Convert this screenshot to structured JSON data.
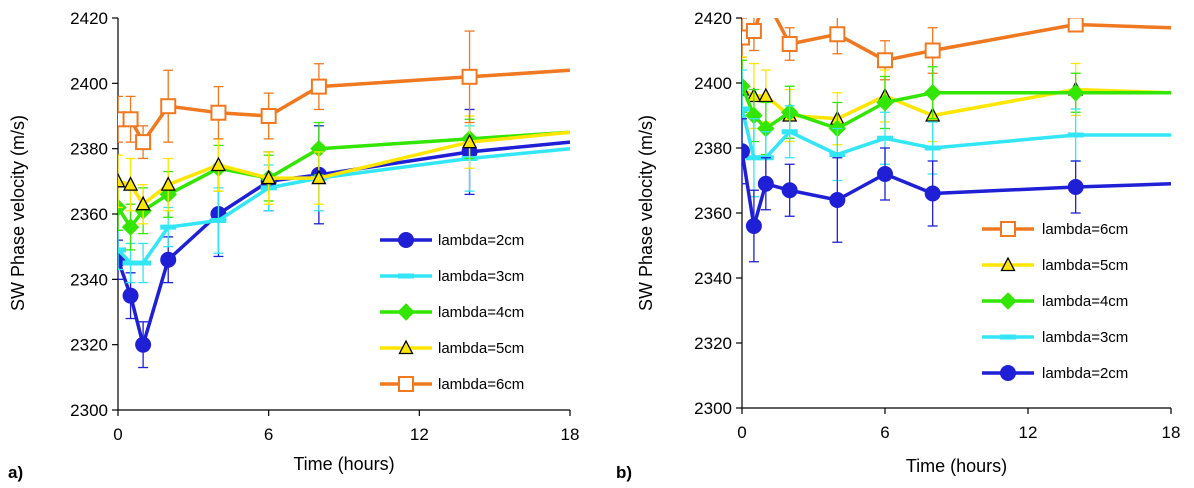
{
  "chart_data": [
    {
      "panel_label": "a)",
      "type": "line",
      "xlabel": "Time (hours)",
      "ylabel": "SW Phase velocity (m/s)",
      "xlim": [
        0,
        18
      ],
      "ylim": [
        2300,
        2420
      ],
      "x_ticks": [
        0,
        6,
        12,
        18
      ],
      "y_ticks": [
        2300,
        2320,
        2340,
        2360,
        2380,
        2400,
        2420
      ],
      "grid": false,
      "legend_position": "lower-right",
      "series": [
        {
          "name": "lambda=2cm",
          "color": "#1f1fd6",
          "marker": "filled-circle",
          "x": [
            0,
            0.5,
            1,
            2,
            4,
            6,
            8,
            14,
            18
          ],
          "y": [
            2346,
            2335,
            2320,
            2346,
            2360,
            2370,
            2372,
            2379,
            2382
          ],
          "err": [
            6,
            7,
            7,
            7,
            13,
            9,
            15,
            13,
            0
          ]
        },
        {
          "name": "lambda=3cm",
          "color": "#33e6f5",
          "marker": "dash",
          "x": [
            0,
            0.5,
            1,
            2,
            4,
            6,
            8,
            14,
            18
          ],
          "y": [
            2349,
            2345,
            2345,
            2356,
            2358,
            2368,
            2371,
            2377,
            2380
          ],
          "err": [
            6,
            6,
            6,
            6,
            10,
            7,
            10,
            10,
            0
          ]
        },
        {
          "name": "lambda=4cm",
          "color": "#33e600",
          "marker": "filled-diamond",
          "x": [
            0,
            0.5,
            1,
            2,
            4,
            6,
            8,
            14,
            18
          ],
          "y": [
            2362,
            2356,
            2361,
            2366,
            2374,
            2371,
            2380,
            2383,
            2385
          ],
          "err": [
            7,
            7,
            7,
            7,
            7,
            7,
            8,
            6,
            0
          ]
        },
        {
          "name": "lambda=5cm",
          "color": "#ffe600",
          "marker": "open-triangle",
          "x": [
            0,
            0.5,
            1,
            2,
            4,
            6,
            8,
            14,
            18
          ],
          "y": [
            2370,
            2369,
            2363,
            2369,
            2375,
            2371,
            2371,
            2382,
            2385
          ],
          "err": [
            8,
            8,
            6,
            8,
            8,
            8,
            8,
            8,
            0
          ]
        },
        {
          "name": "lambda=6cm",
          "color": "#f07820",
          "marker": "open-square",
          "x": [
            0,
            0.5,
            1,
            2,
            4,
            6,
            8,
            14,
            18
          ],
          "y": [
            2389,
            2389,
            2382,
            2393,
            2391,
            2390,
            2399,
            2402,
            2404
          ],
          "err": [
            7,
            7,
            5,
            11,
            8,
            7,
            7,
            14,
            0
          ]
        }
      ]
    },
    {
      "panel_label": "b)",
      "type": "line",
      "xlabel": "Time (hours)",
      "ylabel": "SW Phase velocity (m/s)",
      "xlim": [
        0,
        18
      ],
      "ylim": [
        2300,
        2420
      ],
      "x_ticks": [
        0,
        6,
        12,
        18
      ],
      "y_ticks": [
        2300,
        2320,
        2340,
        2360,
        2380,
        2400,
        2420
      ],
      "grid": false,
      "legend_position": "lower-right",
      "series": [
        {
          "name": "lambda=6cm",
          "color": "#f07820",
          "marker": "open-square",
          "x": [
            0,
            0.5,
            1,
            2,
            4,
            6,
            8,
            14,
            18
          ],
          "y": [
            2414,
            2416,
            2426,
            2412,
            2415,
            2407,
            2410,
            2418,
            2417
          ],
          "err": [
            6,
            6,
            0,
            5,
            6,
            6,
            7,
            0,
            0
          ]
        },
        {
          "name": "lambda=5cm",
          "color": "#ffe600",
          "marker": "open-triangle",
          "x": [
            0,
            0.5,
            1,
            2,
            4,
            6,
            8,
            14,
            18
          ],
          "y": [
            2398,
            2396,
            2396,
            2390,
            2389,
            2396,
            2390,
            2398,
            2397
          ],
          "err": [
            10,
            10,
            8,
            8,
            8,
            8,
            8,
            8,
            0
          ]
        },
        {
          "name": "lambda=4cm",
          "color": "#33e600",
          "marker": "filled-diamond",
          "x": [
            0,
            0.5,
            1,
            2,
            4,
            6,
            8,
            14,
            18
          ],
          "y": [
            2399,
            2390,
            2386,
            2391,
            2386,
            2394,
            2397,
            2397,
            2397
          ],
          "err": [
            8,
            8,
            8,
            8,
            8,
            8,
            8,
            6,
            0
          ]
        },
        {
          "name": "lambda=3cm",
          "color": "#33e6f5",
          "marker": "dash",
          "x": [
            0,
            0.5,
            1,
            2,
            4,
            6,
            8,
            14,
            18
          ],
          "y": [
            2392,
            2377,
            2377,
            2385,
            2378,
            2383,
            2380,
            2384,
            2384
          ],
          "err": [
            12,
            12,
            8,
            8,
            8,
            8,
            8,
            8,
            0
          ]
        },
        {
          "name": "lambda=2cm",
          "color": "#1f1fd6",
          "marker": "filled-circle",
          "x": [
            0,
            0.5,
            1,
            2,
            4,
            6,
            8,
            14,
            18
          ],
          "y": [
            2379,
            2356,
            2369,
            2367,
            2364,
            2372,
            2366,
            2368,
            2369
          ],
          "err": [
            10,
            11,
            8,
            8,
            13,
            8,
            10,
            8,
            0
          ]
        }
      ]
    }
  ]
}
